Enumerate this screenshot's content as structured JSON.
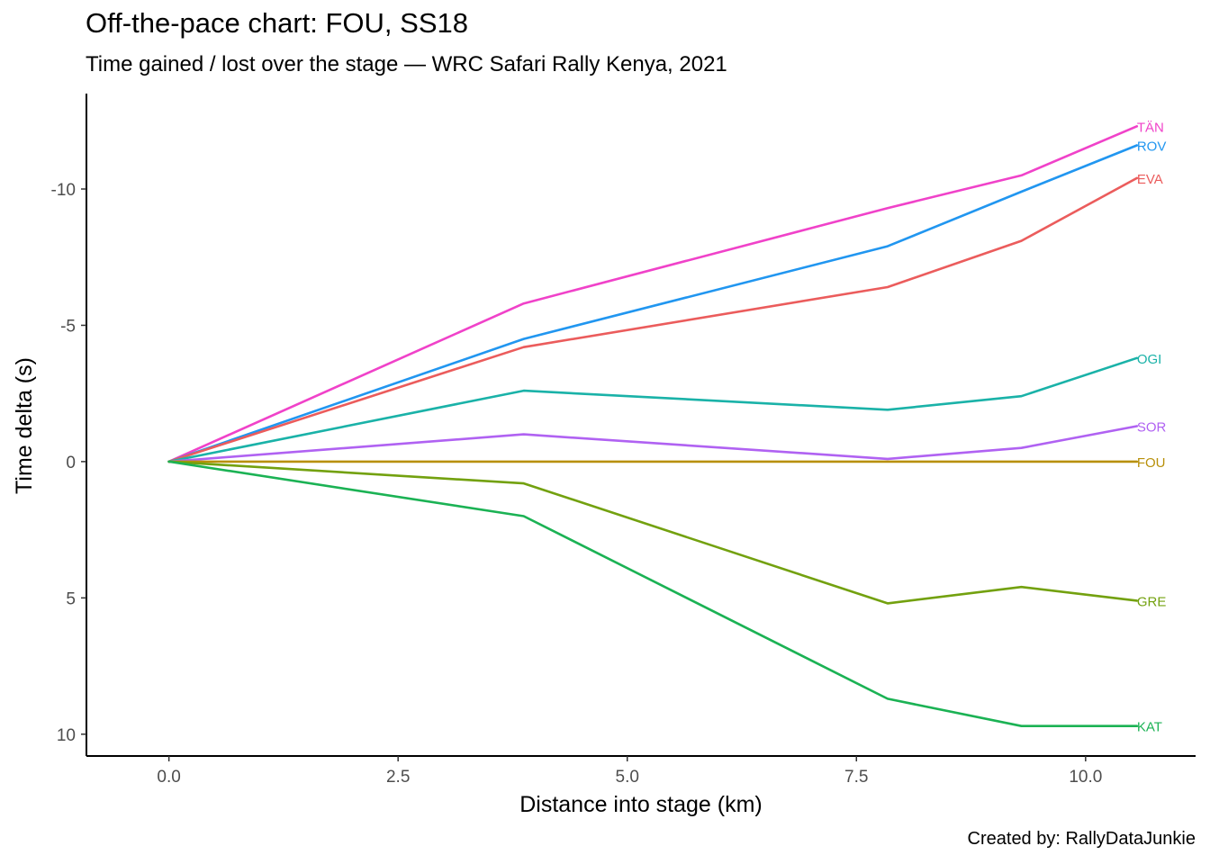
{
  "title": "Off-the-pace chart: FOU, SS18",
  "subtitle": "Time gained / lost over the stage — WRC Safari Rally Kenya, 2021",
  "caption": "Created by: RallyDataJunkie",
  "chart_data": {
    "type": "line",
    "title": "Off-the-pace chart: FOU, SS18",
    "subtitle": "Time gained / lost over the stage — WRC Safari Rally Kenya, 2021",
    "xlabel": "Distance into stage (km)",
    "ylabel": "Time delta (s)",
    "xlim": [
      -0.9,
      11.2
    ],
    "ylim": [
      10.8,
      -13.5
    ],
    "y_axis_reversed": true,
    "x_ticks": [
      0.0,
      2.5,
      5.0,
      7.5,
      10.0
    ],
    "x_tick_labels": [
      "0.0",
      "2.5",
      "5.0",
      "7.5",
      "10.0"
    ],
    "y_ticks": [
      -10,
      -5,
      0,
      5,
      10
    ],
    "y_tick_labels": [
      "-10",
      "-5",
      "0",
      "5",
      "10"
    ],
    "grid": false,
    "legend": "direct labels at line ends",
    "x": [
      0,
      3.87,
      7.84,
      9.3,
      10.56
    ],
    "series": [
      {
        "name": "TÄN",
        "color": "#F042C9",
        "values": [
          0,
          -5.8,
          -9.3,
          -10.5,
          -12.3
        ]
      },
      {
        "name": "ROV",
        "color": "#2196F0",
        "values": [
          0,
          -4.5,
          -7.9,
          -9.9,
          -11.6
        ]
      },
      {
        "name": "EVA",
        "color": "#EB5C5C",
        "values": [
          0,
          -4.2,
          -6.4,
          -8.1,
          -10.4
        ]
      },
      {
        "name": "OGI",
        "color": "#1AB2A8",
        "values": [
          0,
          -2.6,
          -1.9,
          -2.4,
          -3.8
        ]
      },
      {
        "name": "SOR",
        "color": "#B062F2",
        "values": [
          0,
          -1.0,
          -0.1,
          -0.5,
          -1.3
        ]
      },
      {
        "name": "FOU",
        "color": "#B8900A",
        "values": [
          0,
          0,
          0,
          0,
          0
        ]
      },
      {
        "name": "GRE",
        "color": "#73A10F",
        "values": [
          0,
          0.8,
          5.2,
          4.6,
          5.1
        ]
      },
      {
        "name": "KAT",
        "color": "#1BB254",
        "values": [
          0,
          2.0,
          8.7,
          9.7,
          9.7
        ]
      }
    ]
  }
}
